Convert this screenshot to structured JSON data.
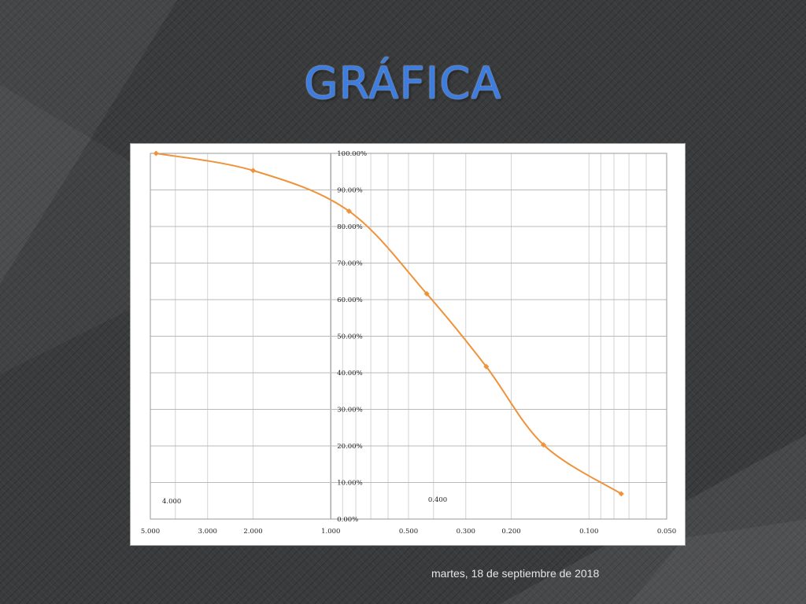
{
  "slide": {
    "title": "GRÁFICA",
    "footer_date": "martes, 18 de septiembre de 2018"
  },
  "chart_data": {
    "type": "line",
    "title": "",
    "xlabel": "",
    "ylabel": "",
    "x_scale": "log",
    "x_reversed": true,
    "xlim": [
      5.0,
      0.05
    ],
    "ylim": [
      0,
      100
    ],
    "grid": true,
    "line_color": "#f0923a",
    "x_ticks": [
      {
        "value": 5.0,
        "label": "5.000"
      },
      {
        "value": 3.0,
        "label": "3.000"
      },
      {
        "value": 2.0,
        "label": "2.000"
      },
      {
        "value": 1.0,
        "label": "1.000"
      },
      {
        "value": 0.5,
        "label": "0.500"
      },
      {
        "value": 0.3,
        "label": "0.300"
      },
      {
        "value": 0.2,
        "label": "0.200"
      },
      {
        "value": 0.1,
        "label": "0.100"
      },
      {
        "value": 0.05,
        "label": "0.050"
      }
    ],
    "y_ticks": [
      {
        "value": 0,
        "label": "0.00%"
      },
      {
        "value": 10,
        "label": "10.00%"
      },
      {
        "value": 20,
        "label": "20.00%"
      },
      {
        "value": 30,
        "label": "30.00%"
      },
      {
        "value": 40,
        "label": "40.00%"
      },
      {
        "value": 50,
        "label": "50.00%"
      },
      {
        "value": 60,
        "label": "60.00%"
      },
      {
        "value": 70,
        "label": "70.00%"
      },
      {
        "value": 80,
        "label": "80.00%"
      },
      {
        "value": 90,
        "label": "90.00%"
      },
      {
        "value": 100,
        "label": "100.00%"
      }
    ],
    "annotations": [
      {
        "text": "4.000",
        "x": 4.5,
        "y": 4.3
      },
      {
        "text": "0.400",
        "x": 0.42,
        "y": 4.7
      }
    ],
    "series": [
      {
        "x": [
          4.75,
          2.0,
          0.85,
          0.425,
          0.25,
          0.15,
          0.075
        ],
        "y": [
          100.0,
          95.3,
          84.2,
          61.6,
          41.7,
          20.3,
          6.9
        ]
      }
    ]
  }
}
